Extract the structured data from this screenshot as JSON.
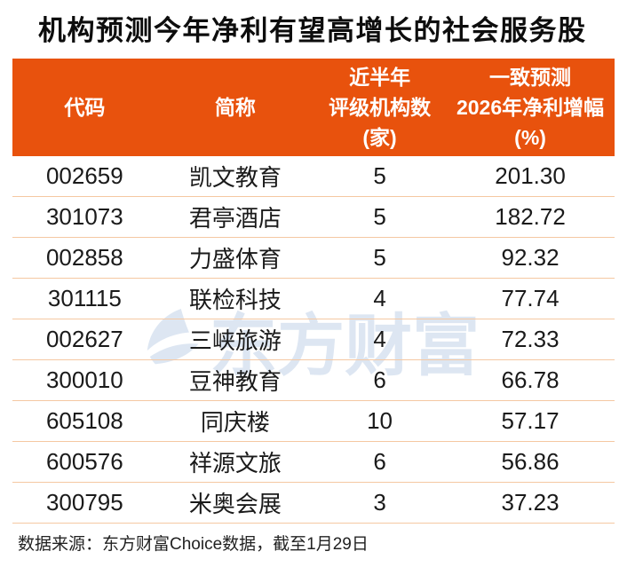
{
  "title": "机构预测今年净利有望高增长的社会服务股",
  "table": {
    "columns": [
      {
        "id": "code",
        "lines": [
          "代码"
        ]
      },
      {
        "id": "name",
        "lines": [
          "简称"
        ]
      },
      {
        "id": "rating_count",
        "lines": [
          "近半年",
          "评级机构数",
          "(家)"
        ]
      },
      {
        "id": "forecast_growth",
        "lines": [
          "一致预测",
          "2026年净利增幅",
          "(%)"
        ]
      }
    ],
    "rows": [
      {
        "code": "002659",
        "name": "凯文教育",
        "rating_count": "5",
        "forecast_growth": "201.30"
      },
      {
        "code": "301073",
        "name": "君亭酒店",
        "rating_count": "5",
        "forecast_growth": "182.72"
      },
      {
        "code": "002858",
        "name": "力盛体育",
        "rating_count": "5",
        "forecast_growth": "92.32"
      },
      {
        "code": "301115",
        "name": "联检科技",
        "rating_count": "4",
        "forecast_growth": "77.74"
      },
      {
        "code": "002627",
        "name": "三峡旅游",
        "rating_count": "4",
        "forecast_growth": "72.33"
      },
      {
        "code": "300010",
        "name": "豆神教育",
        "rating_count": "6",
        "forecast_growth": "66.78"
      },
      {
        "code": "605108",
        "name": "同庆楼",
        "rating_count": "10",
        "forecast_growth": "57.17"
      },
      {
        "code": "600576",
        "name": "祥源文旅",
        "rating_count": "6",
        "forecast_growth": "56.86"
      },
      {
        "code": "300795",
        "name": "米奥会展",
        "rating_count": "3",
        "forecast_growth": "37.23"
      }
    ]
  },
  "watermark": {
    "text": "东方财富"
  },
  "footer": {
    "text": "数据来源：东方财富Choice数据，截至1月29日"
  },
  "colors": {
    "header_bg": "#e8520d",
    "header_text": "#ffffff",
    "divider": "#f5c8a2",
    "row_text": "#1a1a1a",
    "watermark": "#dde6f2",
    "title_text": "#0d0d0d",
    "footer_text": "#222222"
  },
  "chart_data": {
    "type": "table",
    "title": "机构预测今年净利有望高增长的社会服务股",
    "columns": [
      "代码",
      "简称",
      "近半年评级机构数(家)",
      "一致预测2026年净利增幅(%)"
    ],
    "rows": [
      [
        "002659",
        "凯文教育",
        5,
        201.3
      ],
      [
        "301073",
        "君亭酒店",
        5,
        182.72
      ],
      [
        "002858",
        "力盛体育",
        5,
        92.32
      ],
      [
        "301115",
        "联检科技",
        4,
        77.74
      ],
      [
        "002627",
        "三峡旅游",
        4,
        72.33
      ],
      [
        "300010",
        "豆神教育",
        6,
        66.78
      ],
      [
        "605108",
        "同庆楼",
        10,
        57.17
      ],
      [
        "600576",
        "祥源文旅",
        6,
        56.86
      ],
      [
        "300795",
        "米奥会展",
        3,
        37.23
      ]
    ],
    "source_note": "数据来源：东方财富Choice数据，截至1月29日"
  }
}
